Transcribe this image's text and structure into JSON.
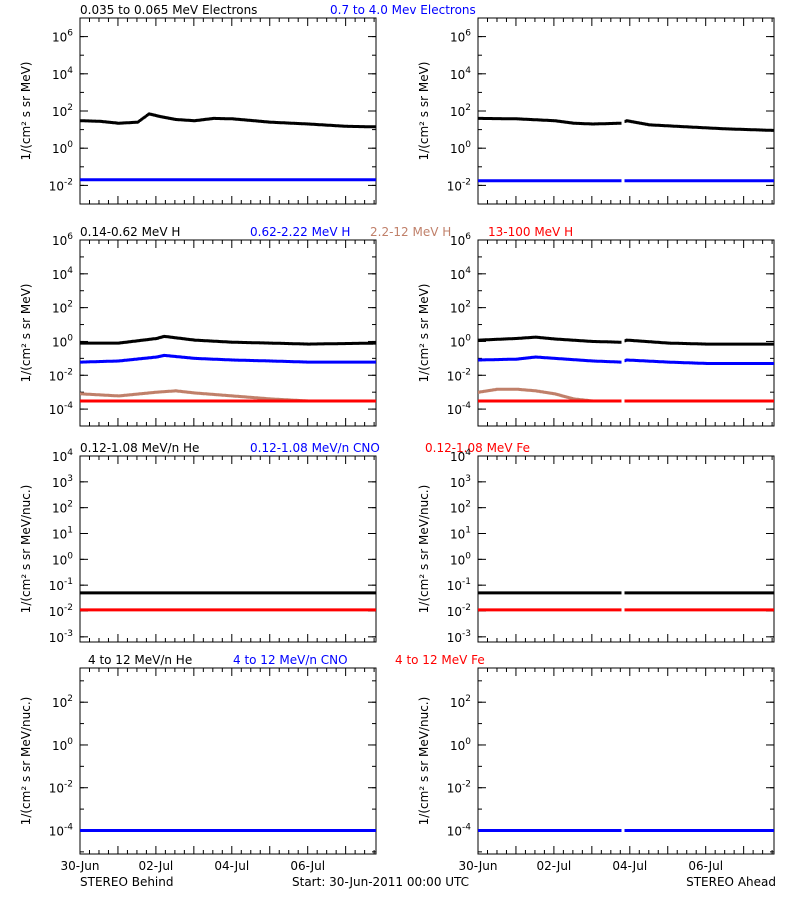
{
  "footer": {
    "left_label": "STEREO Behind",
    "center_label": "Start: 30-Jun-2011 00:00 UTC",
    "right_label": "STEREO Ahead"
  },
  "x_axis": {
    "tick_labels": [
      "30-Jun",
      "02-Jul",
      "04-Jul",
      "06-Jul"
    ],
    "tick_days": [
      0,
      2,
      4,
      6
    ],
    "range_days": [
      0,
      7.8
    ]
  },
  "colors": {
    "black": "#000000",
    "blue": "#0000ff",
    "tan": "#c0806a",
    "red": "#ff0000"
  },
  "chart_data": [
    {
      "type": "scatter",
      "row": 0,
      "legend": [
        {
          "name": "0.035 to 0.065 MeV Electrons",
          "color": "#000000"
        },
        {
          "name": "0.7 to 4.0 Mev Electrons",
          "color": "#0000ff"
        }
      ],
      "ylabel": "1/(cm² s sr MeV)",
      "ylog": true,
      "ylim_exp": [
        -3,
        7
      ],
      "yticks": [
        {
          "base": "10",
          "exp": "-2"
        },
        {
          "base": "10",
          "exp": "0"
        },
        {
          "base": "10",
          "exp": "2"
        },
        {
          "base": "10",
          "exp": "4"
        },
        {
          "base": "10",
          "exp": "6"
        }
      ],
      "panels": [
        {
          "side": "STEREO Behind",
          "gaps": [],
          "series": [
            {
              "color": "#000000",
              "x": [
                0,
                0.5,
                1,
                1.5,
                1.8,
                2.1,
                2.5,
                3,
                3.5,
                4,
                5,
                6,
                7,
                7.8
              ],
              "y": [
                30,
                28,
                22,
                25,
                70,
                50,
                35,
                30,
                40,
                38,
                25,
                20,
                15,
                14
              ]
            },
            {
              "color": "#0000ff",
              "x": [
                0,
                2,
                4,
                6,
                7.8
              ],
              "y": [
                0.02,
                0.02,
                0.02,
                0.02,
                0.02
              ]
            }
          ]
        },
        {
          "side": "STEREO Ahead",
          "gaps": [
            [
              3.75,
              3.85
            ]
          ],
          "series": [
            {
              "color": "#000000",
              "x": [
                0,
                1,
                2,
                2.5,
                3,
                3.75,
                3.9,
                4.5,
                5.5,
                6.5,
                7.8
              ],
              "y": [
                40,
                38,
                30,
                22,
                20,
                22,
                30,
                18,
                14,
                11,
                9
              ]
            },
            {
              "color": "#0000ff",
              "x": [
                0,
                2,
                4,
                6,
                7.8
              ],
              "y": [
                0.018,
                0.018,
                0.018,
                0.018,
                0.018
              ]
            }
          ]
        }
      ]
    },
    {
      "type": "scatter",
      "row": 1,
      "legend": [
        {
          "name": "0.14-0.62 MeV H",
          "color": "#000000"
        },
        {
          "name": "0.62-2.22 MeV H",
          "color": "#0000ff"
        },
        {
          "name": "2.2-12 MeV H",
          "color": "#c0806a"
        },
        {
          "name": "13-100 MeV H",
          "color": "#ff0000"
        }
      ],
      "ylabel": "1/(cm² s sr MeV)",
      "ylog": true,
      "ylim_exp": [
        -5,
        6
      ],
      "yticks": [
        {
          "base": "10",
          "exp": "-4"
        },
        {
          "base": "10",
          "exp": "-2"
        },
        {
          "base": "10",
          "exp": "0"
        },
        {
          "base": "10",
          "exp": "2"
        },
        {
          "base": "10",
          "exp": "4"
        },
        {
          "base": "10",
          "exp": "6"
        }
      ],
      "panels": [
        {
          "side": "STEREO Behind",
          "gaps": [],
          "series": [
            {
              "color": "#000000",
              "x": [
                0,
                1,
                2,
                2.2,
                3,
                4,
                5,
                6,
                7.8
              ],
              "y": [
                0.8,
                0.8,
                1.5,
                2,
                1.2,
                0.9,
                0.8,
                0.7,
                0.8
              ]
            },
            {
              "color": "#0000ff",
              "x": [
                0,
                1,
                2,
                2.2,
                3,
                4,
                5,
                6,
                7.8
              ],
              "y": [
                0.06,
                0.07,
                0.12,
                0.15,
                0.1,
                0.08,
                0.07,
                0.06,
                0.06
              ]
            },
            {
              "color": "#c0806a",
              "x": [
                0,
                1,
                2,
                2.5,
                3,
                4,
                5,
                6,
                7.8
              ],
              "y": [
                0.0008,
                0.0006,
                0.001,
                0.0012,
                0.0009,
                0.0006,
                0.0004,
                0.0003,
                0.0003
              ]
            },
            {
              "color": "#ff0000",
              "x": [
                0,
                2,
                4,
                6,
                7.8
              ],
              "y": [
                0.0003,
                0.0003,
                0.0003,
                0.0003,
                0.0003
              ]
            }
          ]
        },
        {
          "side": "STEREO Ahead",
          "gaps": [
            [
              3.75,
              3.85
            ]
          ],
          "series": [
            {
              "color": "#000000",
              "x": [
                0,
                1,
                1.5,
                2,
                3,
                3.75,
                3.9,
                5,
                6,
                7.8
              ],
              "y": [
                1.2,
                1.5,
                1.8,
                1.4,
                1,
                0.9,
                1.2,
                0.8,
                0.7,
                0.7
              ]
            },
            {
              "color": "#0000ff",
              "x": [
                0,
                1,
                1.5,
                2,
                3,
                3.75,
                3.9,
                5,
                6,
                7.8
              ],
              "y": [
                0.08,
                0.09,
                0.12,
                0.1,
                0.07,
                0.06,
                0.08,
                0.06,
                0.05,
                0.05
              ]
            },
            {
              "color": "#c0806a",
              "x": [
                0,
                0.5,
                1,
                1.5,
                2,
                2.5,
                3,
                3.75,
                5,
                7.8
              ],
              "y": [
                0.001,
                0.0015,
                0.0015,
                0.0012,
                0.0008,
                0.0004,
                0.0003,
                0.0003,
                0.0003,
                0.0003
              ]
            },
            {
              "color": "#ff0000",
              "x": [
                0,
                2,
                4,
                6,
                7.8
              ],
              "y": [
                0.0003,
                0.0003,
                0.0003,
                0.0003,
                0.0003
              ]
            }
          ]
        }
      ]
    },
    {
      "type": "scatter",
      "row": 2,
      "legend": [
        {
          "name": "0.12-1.08 MeV/n He",
          "color": "#000000"
        },
        {
          "name": "0.12-1.08 MeV/n CNO",
          "color": "#0000ff"
        },
        {
          "name": "0.12-1.08 MeV Fe",
          "color": "#ff0000"
        }
      ],
      "ylabel": "1/(cm² s sr MeV/nuc.)",
      "ylog": true,
      "ylim_exp": [
        -3.2,
        4
      ],
      "yticks": [
        {
          "base": "10",
          "exp": "-3"
        },
        {
          "base": "10",
          "exp": "-2"
        },
        {
          "base": "10",
          "exp": "-1"
        },
        {
          "base": "10",
          "exp": "0"
        },
        {
          "base": "10",
          "exp": "1"
        },
        {
          "base": "10",
          "exp": "2"
        },
        {
          "base": "10",
          "exp": "3"
        },
        {
          "base": "10",
          "exp": "4"
        }
      ],
      "panels": [
        {
          "side": "STEREO Behind",
          "gaps": [],
          "series": [
            {
              "color": "#000000",
              "x": [
                0,
                2,
                4,
                6,
                7.8
              ],
              "y": [
                0.05,
                0.05,
                0.05,
                0.05,
                0.05
              ]
            },
            {
              "color": "#ff0000",
              "x": [
                0,
                2,
                4,
                6,
                7.8
              ],
              "y": [
                0.011,
                0.011,
                0.011,
                0.011,
                0.011
              ]
            }
          ]
        },
        {
          "side": "STEREO Ahead",
          "gaps": [
            [
              3.75,
              3.85
            ]
          ],
          "series": [
            {
              "color": "#000000",
              "x": [
                0,
                2,
                4,
                6,
                7.8
              ],
              "y": [
                0.05,
                0.05,
                0.05,
                0.05,
                0.05
              ]
            },
            {
              "color": "#ff0000",
              "x": [
                0,
                2,
                4,
                6,
                7.8
              ],
              "y": [
                0.011,
                0.011,
                0.011,
                0.011,
                0.011
              ]
            }
          ]
        }
      ]
    },
    {
      "type": "scatter",
      "row": 3,
      "legend": [
        {
          "name": "4 to 12 MeV/n He",
          "color": "#000000"
        },
        {
          "name": "4 to 12 MeV/n CNO",
          "color": "#0000ff"
        },
        {
          "name": "4 to 12 MeV Fe",
          "color": "#ff0000"
        }
      ],
      "ylabel": "1/(cm² s sr MeV/nuc.)",
      "ylog": true,
      "ylim_exp": [
        -5.1,
        3.6
      ],
      "yticks": [
        {
          "base": "10",
          "exp": "-4"
        },
        {
          "base": "10",
          "exp": "-2"
        },
        {
          "base": "10",
          "exp": "0"
        },
        {
          "base": "10",
          "exp": "2"
        }
      ],
      "panels": [
        {
          "side": "STEREO Behind",
          "gaps": [],
          "series": [
            {
              "color": "#0000ff",
              "x": [
                0,
                2,
                4,
                6,
                7.8
              ],
              "y": [
                0.0001,
                0.0001,
                0.0001,
                0.0001,
                0.0001
              ]
            }
          ]
        },
        {
          "side": "STEREO Ahead",
          "gaps": [
            [
              3.75,
              3.85
            ]
          ],
          "series": [
            {
              "color": "#0000ff",
              "x": [
                0,
                2,
                4,
                6,
                7.8
              ],
              "y": [
                0.0001,
                0.0001,
                0.0001,
                0.0001,
                0.0001
              ]
            }
          ]
        }
      ]
    }
  ]
}
